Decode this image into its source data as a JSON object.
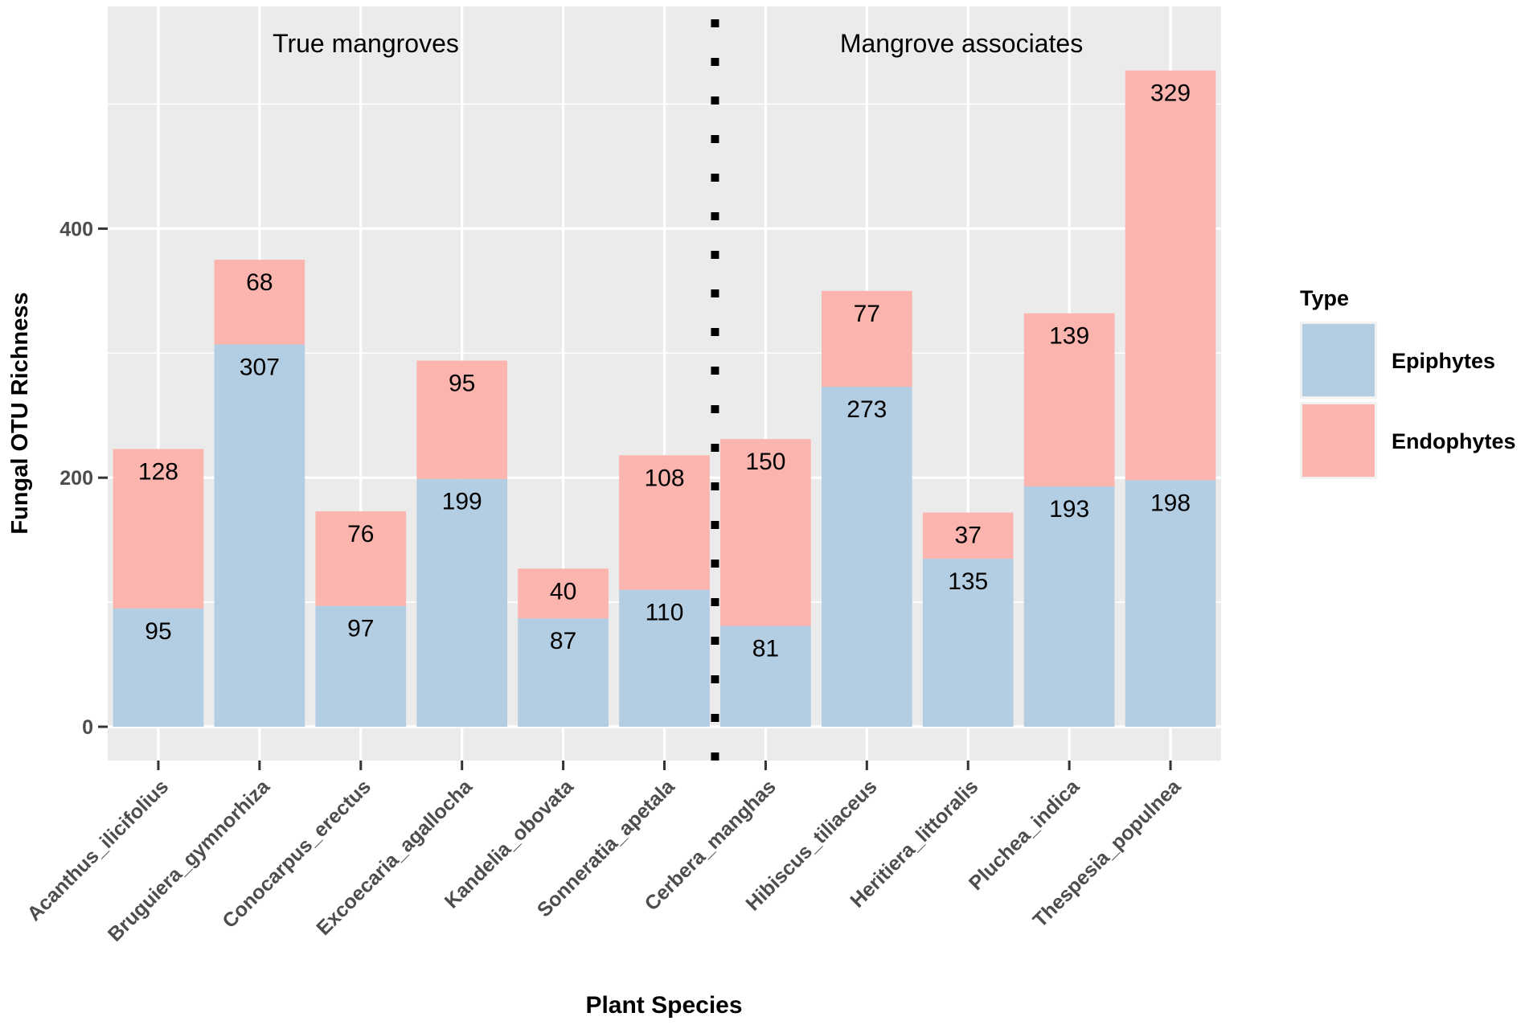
{
  "chart_data": {
    "type": "bar",
    "stacked": true,
    "title": "",
    "xlabel": "Plant Species",
    "ylabel": "Fungal OTU Richness",
    "ylim": [
      -26,
      572
    ],
    "yticks": [
      0,
      200,
      400
    ],
    "grid": true,
    "categories": [
      "Acanthus_ilicifolius",
      "Bruguiera_gymnorhiza",
      "Conocarpus_erectus",
      "Excoecaria_agallocha",
      "Kandelia_obovata",
      "Sonneratia_apetala",
      "Cerbera_manghas",
      "Hibiscus_tiliaceus",
      "Heritiera_littoralis",
      "Pluchea_indica",
      "Thespesia_populnea"
    ],
    "series": [
      {
        "name": "Epiphytes",
        "color": "#b3cde3",
        "values": [
          95,
          307,
          97,
          199,
          87,
          110,
          81,
          273,
          135,
          193,
          198
        ]
      },
      {
        "name": "Endophytes",
        "color": "#fbb4ae",
        "values": [
          128,
          68,
          76,
          95,
          40,
          108,
          150,
          77,
          37,
          139,
          329
        ]
      }
    ],
    "annotations": [
      "True mangroves",
      "Mangrove associates"
    ],
    "divider_after_index": 5,
    "legend": {
      "title": "Type",
      "position": "right"
    }
  },
  "colors": {
    "panel_background": "#ebebeb",
    "grid": "#ffffff",
    "divider": "#000000"
  }
}
